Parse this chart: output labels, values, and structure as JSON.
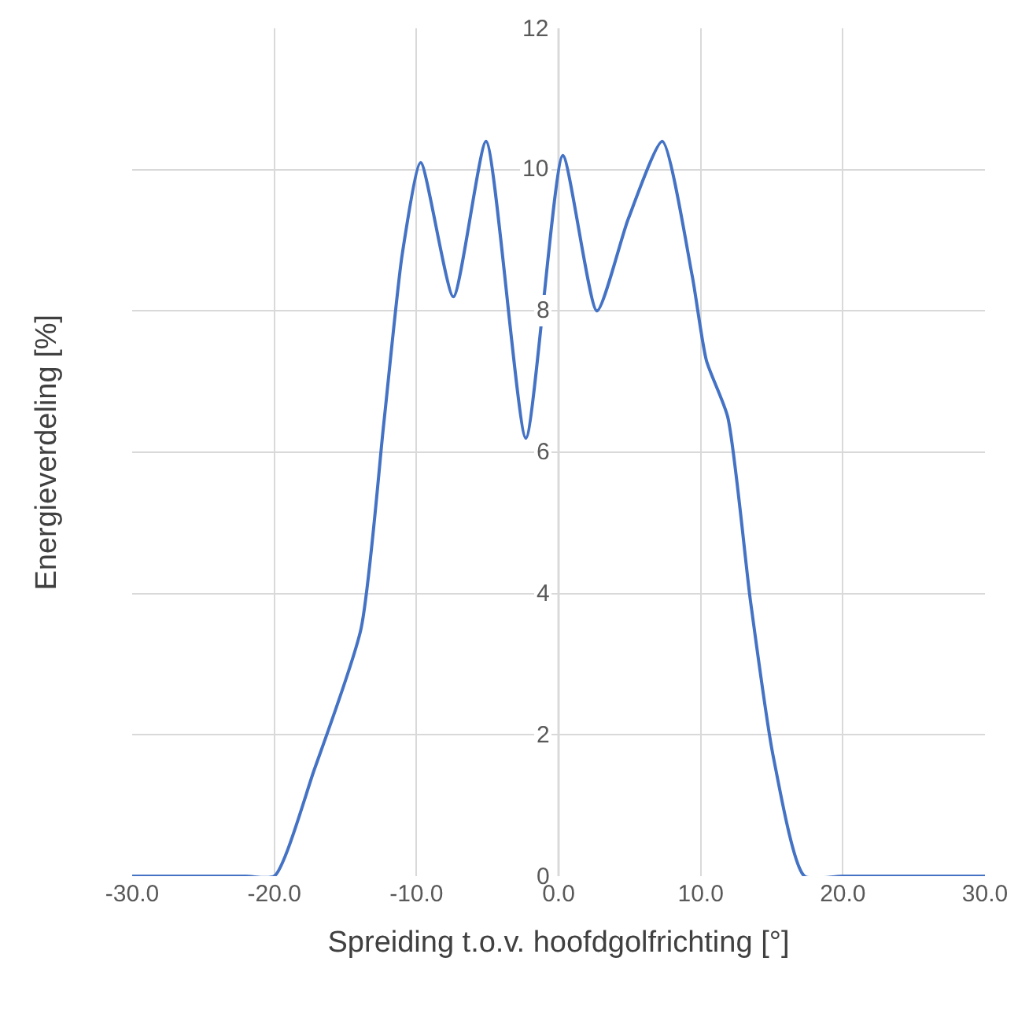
{
  "chart_data": {
    "type": "line",
    "xlabel": "Spreiding t.o.v. hoofdgolfrichting [°]",
    "ylabel": "Energieverdeling [%]",
    "x": [
      -30,
      -22,
      -20,
      -17.2,
      -13.9,
      -12.3,
      -11,
      -9.7,
      -7.4,
      -5.1,
      -2.3,
      0.3,
      2.7,
      4.9,
      7.3,
      9.4,
      10.4,
      11.9,
      13.5,
      15.1,
      17.3,
      20,
      30
    ],
    "series": [
      {
        "color": "#4472c4",
        "values": [
          0,
          0,
          0,
          1.5,
          3.5,
          6.4,
          8.8,
          10.1,
          8.2,
          10.4,
          6.2,
          10.2,
          8.0,
          9.3,
          10.4,
          8.5,
          7.3,
          6.5,
          3.9,
          1.7,
          0,
          0,
          0
        ]
      }
    ],
    "xlim": [
      -30,
      30
    ],
    "xticks": [
      {
        "value": -30,
        "label": "-30.0"
      },
      {
        "value": -20,
        "label": "-20.0"
      },
      {
        "value": -10,
        "label": "-10.0"
      },
      {
        "value": 0,
        "label": "0.0"
      },
      {
        "value": 10,
        "label": "10.0"
      },
      {
        "value": 20,
        "label": "20.0"
      },
      {
        "value": 30,
        "label": "30.0"
      }
    ],
    "ylim": [
      0,
      12
    ],
    "yticks": [
      0,
      2,
      4,
      6,
      8,
      10,
      12
    ],
    "grid": true,
    "marker": "none",
    "line_style": "solid"
  }
}
